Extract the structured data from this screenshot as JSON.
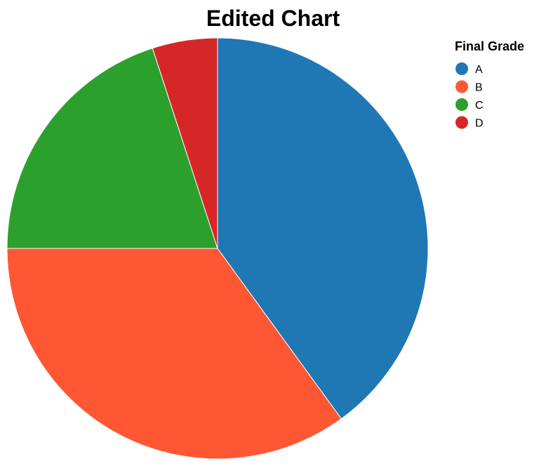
{
  "chart_data": {
    "type": "pie",
    "title": "Edited Chart",
    "legend_title": "Final Grade",
    "legend_position": "top-right",
    "categories": [
      "A",
      "B",
      "C",
      "D"
    ],
    "values": [
      40,
      35,
      20,
      5
    ],
    "colors": [
      "#1f77b4",
      "#ff5733",
      "#2ca02c",
      "#d62728"
    ]
  }
}
